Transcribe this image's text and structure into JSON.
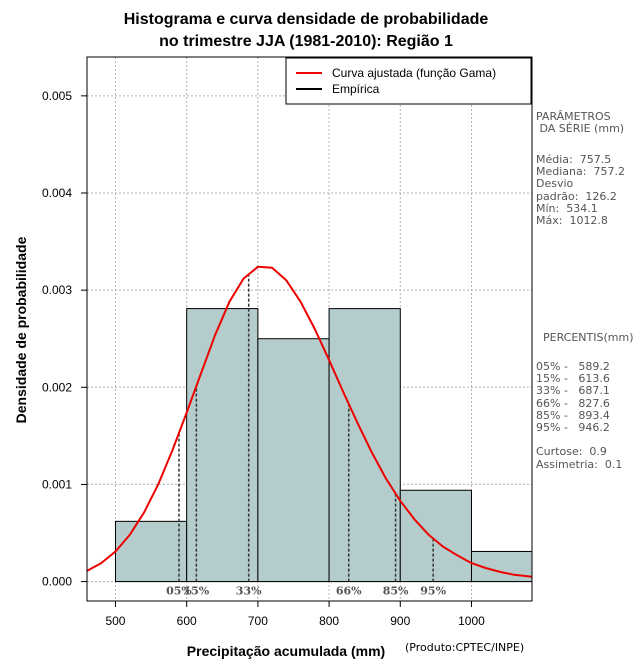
{
  "chart_data": {
    "type": "bar",
    "title": "Histograma e curva densidade de probabilidade",
    "subtitle": "no trimestre JJA (1981-2010): Região 1",
    "xlabel": "Precipitação acumulada (mm)",
    "ylabel": "Densidade de probabilidade",
    "xlim": [
      460,
      1085
    ],
    "ylim": [
      -0.0002,
      0.0054
    ],
    "x_ticks": [
      500,
      600,
      700,
      800,
      900,
      1000
    ],
    "x_tick_labels": [
      "500",
      "600",
      "700",
      "800",
      "900",
      "1000"
    ],
    "y_ticks": [
      0,
      0.001,
      0.002,
      0.003,
      0.004,
      0.005
    ],
    "y_tick_labels": [
      "0.000",
      "0.001",
      "0.002",
      "0.003",
      "0.004",
      "0.005"
    ],
    "grid": true,
    "bins": [
      {
        "x0": 500,
        "x1": 600,
        "value": 0.00062
      },
      {
        "x0": 600,
        "x1": 700,
        "value": 0.00281
      },
      {
        "x0": 700,
        "x1": 800,
        "value": 0.0025
      },
      {
        "x0": 800,
        "x1": 900,
        "value": 0.00281
      },
      {
        "x0": 900,
        "x1": 1000,
        "value": 0.00094
      },
      {
        "x0": 1000,
        "x1": 1100,
        "value": 0.00031
      }
    ],
    "curve": {
      "name": "Curva ajustada (função Gama)",
      "color": "#ee0000",
      "x": [
        460,
        480,
        500,
        520,
        540,
        560,
        580,
        600,
        620,
        640,
        660,
        680,
        700,
        720,
        740,
        760,
        780,
        800,
        820,
        840,
        860,
        880,
        900,
        920,
        940,
        960,
        980,
        1000,
        1020,
        1040,
        1060,
        1085
      ],
      "y": [
        0.00011,
        0.00019,
        0.00031,
        0.00048,
        0.00071,
        0.001,
        0.00135,
        0.00174,
        0.00214,
        0.00254,
        0.00288,
        0.00312,
        0.00324,
        0.00323,
        0.0031,
        0.00288,
        0.0026,
        0.00228,
        0.00195,
        0.00163,
        0.00133,
        0.00106,
        0.00083,
        0.00064,
        0.00048,
        0.00036,
        0.00027,
        0.00019,
        0.00014,
        0.0001,
        7e-05,
        5e-05
      ]
    },
    "percentile_lines": [
      {
        "label": "05%",
        "x": 589.2
      },
      {
        "label": "15%",
        "x": 613.6
      },
      {
        "label": "33%",
        "x": 687.1
      },
      {
        "label": "66%",
        "x": 827.6
      },
      {
        "label": "85%",
        "x": 893.4
      },
      {
        "label": "95%",
        "x": 946.2
      }
    ],
    "legend": {
      "position": "top-right",
      "entries": [
        {
          "label": "Curva ajustada (função Gama)",
          "color": "#ee0000"
        },
        {
          "label": "Empírica",
          "color": "#000000"
        }
      ]
    },
    "colors": {
      "bar_fill": "#b4cdcc",
      "bar_stroke": "#000000",
      "grid": "#b0b0b0",
      "percentile_text": "#555555"
    }
  },
  "side_panel": {
    "params_title": "PARÂMETROS\n DA SÉRIE (mm)",
    "params_body": "Média:  757.5\nMediana:  757.2\nDesvio\npadrão:  126.2\nMín:  534.1\nMáx:  1012.8",
    "percentis_title": "PERCENTIS(mm)",
    "percentis_body": "05% -   589.2\n15% -   613.6\n33% -   687.1\n66% -   827.6\n85% -   893.4\n95% -   946.2\n\nCurtose:  0.9\nAssimetria:  0.1"
  },
  "credit": "(Produto:CPTEC/INPE)"
}
